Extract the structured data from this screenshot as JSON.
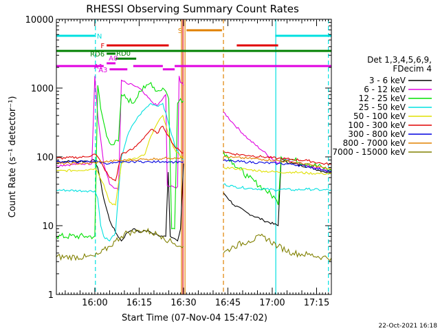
{
  "chart_data": {
    "type": "line",
    "title": "RHESSI Observing Summary Count Rates",
    "xlabel": "Start Time (07-Nov-04 15:47:02)",
    "ylabel": "Count Rate (s⁻¹ detector⁻¹)",
    "y_scale": "log",
    "ylim": [
      1,
      10000
    ],
    "xlim": [
      0,
      93
    ],
    "x_unit": "minutes from 15:47:02",
    "x_ticks": [
      {
        "v": 13,
        "label": "16:00"
      },
      {
        "v": 28,
        "label": "16:15"
      },
      {
        "v": 43,
        "label": "16:30"
      },
      {
        "v": 58,
        "label": "16:45"
      },
      {
        "v": 73,
        "label": "17:00"
      },
      {
        "v": 88,
        "label": "17:15"
      }
    ],
    "y_ticks": [
      {
        "v": 1,
        "label": "1"
      },
      {
        "v": 10,
        "label": "10"
      },
      {
        "v": 100,
        "label": "100"
      },
      {
        "v": 1000,
        "label": "1000"
      },
      {
        "v": 10000,
        "label": "10000"
      }
    ],
    "legend_header": [
      "Det 1,3,4,5,6,9,",
      "FDecim 4"
    ],
    "legend_position": "right",
    "gaps": [
      [
        43.5,
        56.5
      ]
    ],
    "series": [
      {
        "name": "3 - 6 keV",
        "color": "#000000",
        "points": [
          [
            0,
            85
          ],
          [
            10,
            87
          ],
          [
            13,
            88
          ],
          [
            14,
            70
          ],
          [
            16,
            25
          ],
          [
            18,
            12
          ],
          [
            20,
            8
          ],
          [
            22,
            6
          ],
          [
            24,
            8
          ],
          [
            26,
            9
          ],
          [
            28,
            8
          ],
          [
            30,
            8.5
          ],
          [
            32,
            8
          ],
          [
            34,
            7.5
          ],
          [
            36,
            7
          ],
          [
            37,
            7
          ],
          [
            37.8,
            60
          ],
          [
            38.5,
            7
          ],
          [
            40,
            6.5
          ],
          [
            41,
            6
          ],
          [
            42,
            9
          ],
          [
            43,
            80
          ],
          [
            56.5,
            30
          ],
          [
            60,
            20
          ],
          [
            65,
            15
          ],
          [
            70,
            12
          ],
          [
            75,
            10
          ],
          [
            76,
            88
          ],
          [
            80,
            80
          ],
          [
            85,
            72
          ],
          [
            90,
            62
          ],
          [
            93,
            58
          ]
        ]
      },
      {
        "name": "6 - 12 keV",
        "color": "#e000e0",
        "points": [
          [
            0,
            75
          ],
          [
            10,
            80
          ],
          [
            12,
            80
          ],
          [
            13,
            1500
          ],
          [
            14,
            400
          ],
          [
            16,
            80
          ],
          [
            18,
            40
          ],
          [
            20,
            35
          ],
          [
            21,
            33
          ],
          [
            22,
            1300
          ],
          [
            24,
            1150
          ],
          [
            26,
            1100
          ],
          [
            28,
            1000
          ],
          [
            30,
            800
          ],
          [
            32,
            650
          ],
          [
            34,
            550
          ],
          [
            36,
            700
          ],
          [
            37,
            800
          ],
          [
            37.5,
            38
          ],
          [
            40,
            36
          ],
          [
            41,
            37
          ],
          [
            41.5,
            1500
          ],
          [
            42,
            1200
          ],
          [
            43,
            1100
          ],
          [
            56.5,
            450
          ],
          [
            60,
            300
          ],
          [
            65,
            180
          ],
          [
            70,
            120
          ],
          [
            75,
            80
          ],
          [
            76,
            95
          ],
          [
            80,
            85
          ],
          [
            85,
            75
          ],
          [
            90,
            65
          ],
          [
            93,
            60
          ]
        ]
      },
      {
        "name": "12 - 25 keV",
        "color": "#00e000",
        "points": [
          [
            0,
            7
          ],
          [
            10,
            7
          ],
          [
            13,
            7
          ],
          [
            14,
            1100
          ],
          [
            15,
            500
          ],
          [
            17,
            200
          ],
          [
            19,
            150
          ],
          [
            21,
            170
          ],
          [
            22,
            800
          ],
          [
            24,
            700
          ],
          [
            26,
            600
          ],
          [
            28,
            900
          ],
          [
            30,
            1000
          ],
          [
            32,
            1200
          ],
          [
            34,
            900
          ],
          [
            36,
            1000
          ],
          [
            37,
            900
          ],
          [
            38,
            700
          ],
          [
            39,
            9
          ],
          [
            40,
            9
          ],
          [
            41,
            600
          ],
          [
            42,
            700
          ],
          [
            43,
            650
          ],
          [
            56.5,
            120
          ],
          [
            60,
            80
          ],
          [
            65,
            50
          ],
          [
            70,
            35
          ],
          [
            74,
            25
          ],
          [
            75,
            20
          ],
          [
            76,
            100
          ],
          [
            80,
            90
          ],
          [
            85,
            80
          ],
          [
            90,
            70
          ],
          [
            93,
            62
          ]
        ]
      },
      {
        "name": "25 - 50 keV",
        "color": "#00e0e0",
        "points": [
          [
            0,
            33
          ],
          [
            10,
            32
          ],
          [
            13,
            32
          ],
          [
            14,
            25
          ],
          [
            15,
            10
          ],
          [
            16,
            7
          ],
          [
            18,
            6
          ],
          [
            20,
            8
          ],
          [
            22,
            100
          ],
          [
            24,
            200
          ],
          [
            26,
            300
          ],
          [
            28,
            400
          ],
          [
            30,
            500
          ],
          [
            32,
            600
          ],
          [
            34,
            550
          ],
          [
            36,
            600
          ],
          [
            38,
            300
          ],
          [
            40,
            150
          ],
          [
            42,
            100
          ],
          [
            43,
            90
          ],
          [
            56.5,
            40
          ],
          [
            60,
            37
          ],
          [
            65,
            35
          ],
          [
            70,
            34
          ],
          [
            75,
            33
          ],
          [
            76,
            34
          ],
          [
            80,
            33
          ],
          [
            85,
            34
          ],
          [
            90,
            33
          ],
          [
            93,
            33
          ]
        ]
      },
      {
        "name": "50 - 100 keV",
        "color": "#e0e000",
        "points": [
          [
            0,
            62
          ],
          [
            10,
            65
          ],
          [
            13,
            68
          ],
          [
            14,
            60
          ],
          [
            16,
            40
          ],
          [
            18,
            22
          ],
          [
            20,
            20
          ],
          [
            22,
            80
          ],
          [
            24,
            90
          ],
          [
            26,
            95
          ],
          [
            28,
            100
          ],
          [
            30,
            110
          ],
          [
            32,
            200
          ],
          [
            34,
            300
          ],
          [
            36,
            400
          ],
          [
            38,
            200
          ],
          [
            40,
            130
          ],
          [
            42,
            100
          ],
          [
            43,
            95
          ],
          [
            56.5,
            70
          ],
          [
            60,
            68
          ],
          [
            65,
            65
          ],
          [
            70,
            62
          ],
          [
            75,
            60
          ],
          [
            80,
            60
          ],
          [
            85,
            58
          ],
          [
            90,
            57
          ],
          [
            93,
            57
          ]
        ]
      },
      {
        "name": "100 - 300 keV",
        "color": "#e00000",
        "points": [
          [
            0,
            95
          ],
          [
            10,
            100
          ],
          [
            13,
            110
          ],
          [
            14,
            100
          ],
          [
            16,
            70
          ],
          [
            18,
            50
          ],
          [
            20,
            45
          ],
          [
            22,
            110
          ],
          [
            24,
            120
          ],
          [
            26,
            130
          ],
          [
            28,
            160
          ],
          [
            30,
            200
          ],
          [
            32,
            250
          ],
          [
            34,
            220
          ],
          [
            36,
            280
          ],
          [
            38,
            200
          ],
          [
            40,
            140
          ],
          [
            42,
            120
          ],
          [
            43,
            115
          ],
          [
            56.5,
            120
          ],
          [
            60,
            110
          ],
          [
            65,
            105
          ],
          [
            70,
            100
          ],
          [
            75,
            95
          ],
          [
            80,
            92
          ],
          [
            85,
            88
          ],
          [
            90,
            80
          ],
          [
            93,
            78
          ]
        ]
      },
      {
        "name": "300 - 800 keV",
        "color": "#0000e0",
        "points": [
          [
            0,
            85
          ],
          [
            10,
            85
          ],
          [
            13,
            86
          ],
          [
            14,
            85
          ],
          [
            16,
            82
          ],
          [
            18,
            80
          ],
          [
            20,
            82
          ],
          [
            22,
            83
          ],
          [
            24,
            84
          ],
          [
            26,
            85
          ],
          [
            28,
            86
          ],
          [
            30,
            85
          ],
          [
            32,
            84
          ],
          [
            34,
            85
          ],
          [
            36,
            86
          ],
          [
            38,
            85
          ],
          [
            40,
            84
          ],
          [
            42,
            85
          ],
          [
            43,
            85
          ],
          [
            56.5,
            88
          ],
          [
            60,
            86
          ],
          [
            65,
            84
          ],
          [
            70,
            82
          ],
          [
            75,
            80
          ],
          [
            80,
            78
          ],
          [
            85,
            72
          ],
          [
            90,
            65
          ],
          [
            93,
            62
          ]
        ]
      },
      {
        "name": "800 - 7000 keV",
        "color": "#e08000",
        "points": [
          [
            0,
            80
          ],
          [
            10,
            80
          ],
          [
            13,
            82
          ],
          [
            14,
            84
          ],
          [
            16,
            85
          ],
          [
            18,
            86
          ],
          [
            20,
            88
          ],
          [
            22,
            88
          ],
          [
            24,
            90
          ],
          [
            26,
            90
          ],
          [
            28,
            92
          ],
          [
            30,
            92
          ],
          [
            32,
            93
          ],
          [
            34,
            94
          ],
          [
            36,
            95
          ],
          [
            38,
            96
          ],
          [
            40,
            97
          ],
          [
            42,
            98
          ],
          [
            43,
            98
          ],
          [
            56.5,
            100
          ],
          [
            60,
            98
          ],
          [
            65,
            95
          ],
          [
            70,
            92
          ],
          [
            75,
            88
          ],
          [
            80,
            84
          ],
          [
            85,
            78
          ],
          [
            90,
            70
          ],
          [
            93,
            66
          ]
        ]
      },
      {
        "name": "7000 - 15000 keV",
        "color": "#808000",
        "points": [
          [
            0,
            3.5
          ],
          [
            10,
            3.5
          ],
          [
            13,
            3.6
          ],
          [
            15,
            4
          ],
          [
            18,
            5
          ],
          [
            20,
            6
          ],
          [
            22,
            7
          ],
          [
            24,
            8
          ],
          [
            26,
            8
          ],
          [
            28,
            8.5
          ],
          [
            30,
            8.5
          ],
          [
            32,
            8
          ],
          [
            34,
            7.5
          ],
          [
            36,
            7
          ],
          [
            38,
            6
          ],
          [
            40,
            5.5
          ],
          [
            42,
            5
          ],
          [
            43,
            5
          ],
          [
            56.5,
            4
          ],
          [
            60,
            5
          ],
          [
            65,
            6
          ],
          [
            70,
            7
          ],
          [
            75,
            5
          ],
          [
            80,
            4
          ],
          [
            85,
            3.8
          ],
          [
            90,
            3.5
          ],
          [
            93,
            3.4
          ]
        ]
      }
    ],
    "state_bars": [
      {
        "label": "N",
        "color": "#00e0e0",
        "y_frac": 0.06,
        "segments": [
          [
            0,
            13
          ],
          [
            74,
            93
          ]
        ]
      },
      {
        "label": "S",
        "color": "#e08000",
        "y_frac": 0.04,
        "segments": [
          [
            44,
            56
          ]
        ]
      },
      {
        "label": "F",
        "color": "#e00000",
        "y_frac": 0.095,
        "segments": [
          [
            17,
            38
          ],
          [
            61,
            75
          ]
        ]
      },
      {
        "label": "",
        "color": "#008000",
        "y_frac": 0.115,
        "segments": [
          [
            0,
            93
          ]
        ]
      },
      {
        "label": "RD0",
        "color": "#008000",
        "y_frac": 0.143,
        "segments": [
          [
            20,
            27
          ]
        ]
      },
      {
        "label": "RD6",
        "color": "#008000",
        "y_frac": 0.125,
        "segments": [
          [
            17,
            20
          ]
        ]
      },
      {
        "label": "A1",
        "color": "#e000e0",
        "y_frac": 0.17,
        "segments": [
          [
            0,
            16
          ],
          [
            26,
            36
          ],
          [
            40,
            93
          ]
        ]
      },
      {
        "label": "A0",
        "color": "#e000e0",
        "y_frac": 0.16,
        "segments": [
          [
            17,
            20
          ]
        ]
      },
      {
        "label": "A3",
        "color": "#e000e0",
        "y_frac": 0.182,
        "segments": [
          [
            18,
            24
          ],
          [
            36,
            40
          ]
        ]
      }
    ],
    "vertical_markers": [
      {
        "x": 13.2,
        "color": "#00e0e0",
        "style": "dashed"
      },
      {
        "x": 42.3,
        "color": "#e08000",
        "style": "solid"
      },
      {
        "x": 42.8,
        "color": "#e00000",
        "style": "solid"
      },
      {
        "x": 43.5,
        "color": "#e08000",
        "style": "solid"
      },
      {
        "x": 56.5,
        "color": "#e08000",
        "style": "dashed"
      },
      {
        "x": 74.2,
        "color": "#00e0e0",
        "style": "solid"
      },
      {
        "x": 92.0,
        "color": "#00e0e0",
        "style": "dashed"
      }
    ],
    "footer_date": "22-Oct-2021 16:18"
  }
}
